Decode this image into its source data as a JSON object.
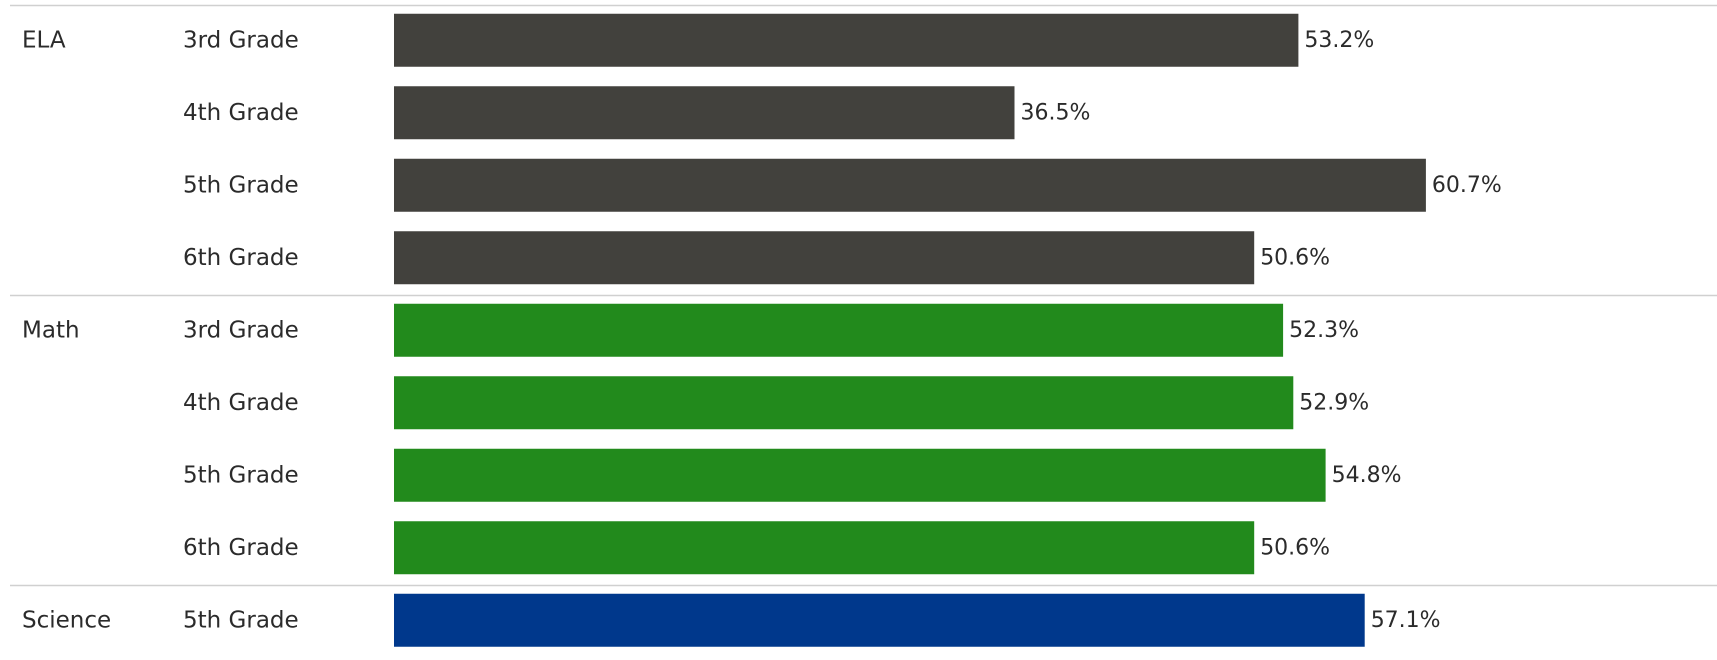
{
  "chart_data": {
    "type": "bar",
    "orientation": "horizontal",
    "value_unit": "%",
    "xlim": [
      0,
      65
    ],
    "grid": false,
    "legend": "none",
    "groups": [
      {
        "name": "ELA",
        "color": "#42413d",
        "rows": [
          {
            "category": "3rd Grade",
            "value": 53.2,
            "label": "53.2%"
          },
          {
            "category": "4th Grade",
            "value": 36.5,
            "label": "36.5%"
          },
          {
            "category": "5th Grade",
            "value": 60.7,
            "label": "60.7%"
          },
          {
            "category": "6th Grade",
            "value": 50.6,
            "label": "50.6%"
          }
        ]
      },
      {
        "name": "Math",
        "color": "#228a1c",
        "rows": [
          {
            "category": "3rd Grade",
            "value": 52.3,
            "label": "52.3%"
          },
          {
            "category": "4th Grade",
            "value": 52.9,
            "label": "52.9%"
          },
          {
            "category": "5th Grade",
            "value": 54.8,
            "label": "54.8%"
          },
          {
            "category": "6th Grade",
            "value": 50.6,
            "label": "50.6%"
          }
        ]
      },
      {
        "name": "Science",
        "color": "#00388c",
        "rows": [
          {
            "category": "5th Grade",
            "value": 57.1,
            "label": "57.1%"
          }
        ]
      }
    ]
  }
}
